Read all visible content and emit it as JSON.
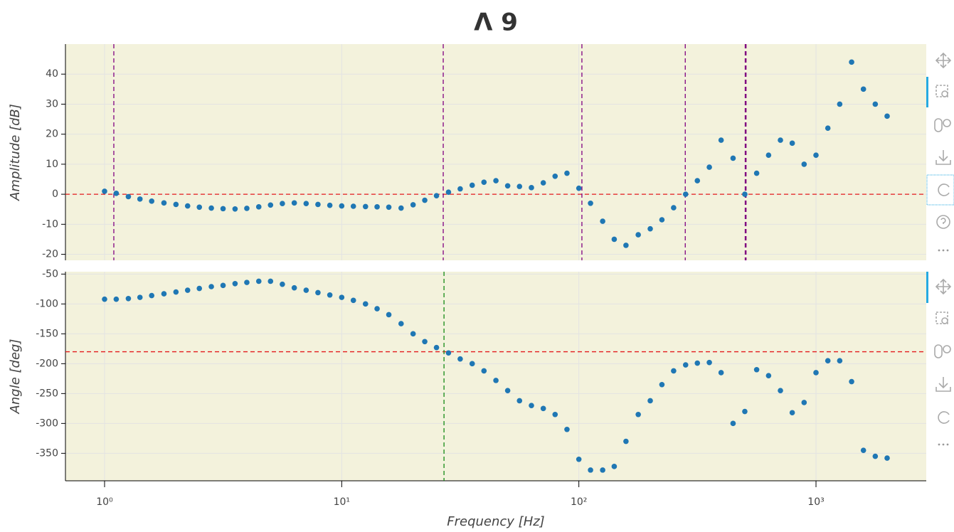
{
  "chart_data": [
    {
      "type": "scatter",
      "title": "Λ 9",
      "ylabel": "Amplitude [dB]",
      "log_x": true,
      "grid": true,
      "background": "#f3f2dc",
      "xlim": [
        0.684,
        2917
      ],
      "xticks": [
        1,
        10,
        100,
        1000
      ],
      "ylim": [
        -22,
        50
      ],
      "yticks": [
        -20,
        -10,
        0,
        10,
        20,
        30,
        40
      ],
      "hlines": [
        {
          "value": 0,
          "color": "#e41a1c"
        }
      ],
      "vlines": [
        {
          "value": 1.094,
          "color": "#800080"
        },
        {
          "value": 26.8,
          "color": "#800080"
        },
        {
          "value": 103,
          "color": "#800080"
        },
        {
          "value": 281,
          "color": "#800080"
        },
        {
          "value": 505,
          "color": "#800080",
          "width": 2.5
        }
      ],
      "x": [
        1,
        1.12,
        1.26,
        1.41,
        1.58,
        1.78,
        2,
        2.24,
        2.51,
        2.82,
        3.16,
        3.55,
        3.98,
        4.47,
        5.01,
        5.62,
        6.31,
        7.08,
        7.94,
        8.91,
        10,
        11.2,
        12.6,
        14.1,
        15.8,
        17.8,
        20,
        22.4,
        25.1,
        28.2,
        31.6,
        35.5,
        39.8,
        44.7,
        50.1,
        56.2,
        63.1,
        70.8,
        79.4,
        89.1,
        100,
        112,
        126,
        141,
        158,
        178,
        200,
        224,
        251,
        282,
        316,
        355,
        398,
        447,
        501,
        562,
        631,
        708,
        794,
        891,
        1000,
        1122,
        1259,
        1413,
        1585,
        1778,
        1995
      ],
      "series": [
        {
          "color": "#1f77b4",
          "values": [
            1,
            0.3,
            -0.8,
            -1.6,
            -2.3,
            -2.9,
            -3.4,
            -3.9,
            -4.3,
            -4.6,
            -4.8,
            -4.9,
            -4.7,
            -4.2,
            -3.6,
            -3.1,
            -2.9,
            -3.1,
            -3.4,
            -3.7,
            -3.9,
            -4.0,
            -4.1,
            -4.2,
            -4.3,
            -4.6,
            -3.5,
            -2,
            -0.5,
            0.7,
            1.8,
            3,
            4,
            4.5,
            2.8,
            2.6,
            2.2,
            3.8,
            6,
            7,
            2,
            -3,
            -9,
            -15,
            -17,
            -13.5,
            -11.5,
            -8.5,
            -4.5,
            0,
            4.5,
            9,
            18,
            12,
            0,
            7,
            13,
            18,
            17,
            10,
            13,
            22,
            30,
            44,
            35,
            30,
            26
          ]
        }
      ]
    },
    {
      "type": "scatter",
      "ylabel": "Angle [deg]",
      "xlabel": "Frequency [Hz]",
      "log_x": true,
      "grid": true,
      "background": "#f3f2dc",
      "xlim": [
        0.684,
        2917
      ],
      "xticks": [
        {
          "value": 1,
          "label": "10⁰"
        },
        {
          "value": 10,
          "label": "10¹"
        },
        {
          "value": 100,
          "label": "10²"
        },
        {
          "value": 1000,
          "label": "10³"
        }
      ],
      "ylim": [
        -396,
        -46
      ],
      "yticks": [
        -50,
        -100,
        -150,
        -200,
        -250,
        -300,
        -350
      ],
      "hlines": [
        {
          "value": -180,
          "color": "#e41a1c"
        }
      ],
      "vlines": [
        {
          "value": 27,
          "color": "#138a13"
        }
      ],
      "x": [
        1,
        1.12,
        1.26,
        1.41,
        1.58,
        1.78,
        2,
        2.24,
        2.51,
        2.82,
        3.16,
        3.55,
        3.98,
        4.47,
        5.01,
        5.62,
        6.31,
        7.08,
        7.94,
        8.91,
        10,
        11.2,
        12.6,
        14.1,
        15.8,
        17.8,
        20,
        22.4,
        25.1,
        28.2,
        31.6,
        35.5,
        39.8,
        44.7,
        50.1,
        56.2,
        63.1,
        70.8,
        79.4,
        89.1,
        100,
        112,
        126,
        141,
        158,
        178,
        200,
        224,
        251,
        282,
        316,
        355,
        398,
        447,
        501,
        562,
        631,
        708,
        794,
        891,
        1000,
        1122,
        1259,
        1413,
        1585,
        1778,
        1995
      ],
      "series": [
        {
          "color": "#1f77b4",
          "values": [
            -92,
            -92,
            -91,
            -89,
            -86,
            -83,
            -80,
            -77,
            -74,
            -71,
            -69,
            -66,
            -64,
            -62,
            -62,
            -67,
            -73,
            -77,
            -81,
            -85,
            -89,
            -94,
            -100,
            -108,
            -118,
            -133,
            -150,
            -163,
            -173,
            -182,
            -192,
            -200,
            -212,
            -228,
            -245,
            -262,
            -270,
            -275,
            -285,
            -310,
            -360,
            -378,
            -378,
            -372,
            -330,
            -285,
            -262,
            -235,
            -212,
            -202,
            -199,
            -198,
            -215,
            -300,
            -280,
            -210,
            -220,
            -245,
            -282,
            -265,
            -215,
            -195,
            -195,
            -230,
            -345,
            -355,
            -358
          ]
        }
      ]
    }
  ]
}
